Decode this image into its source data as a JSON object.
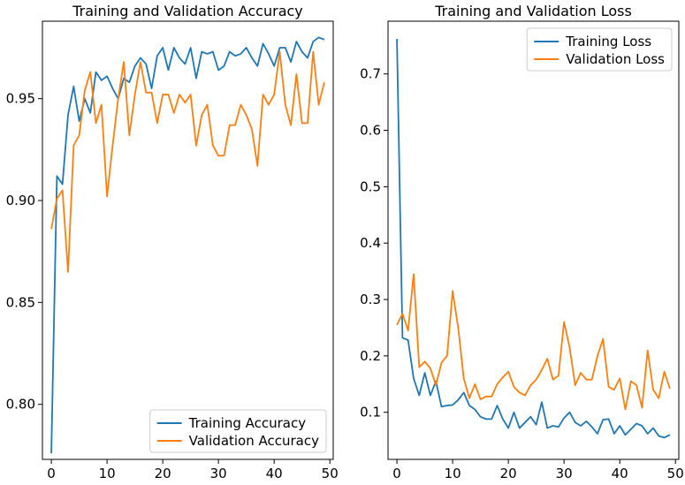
{
  "colors": {
    "training": "#1f77b4",
    "validation": "#ff7f0e"
  },
  "chart_data": [
    {
      "type": "line",
      "title": "Training and Validation Accuracy",
      "xlabel": "",
      "ylabel": "",
      "xlim": [
        -1.6,
        50.6
      ],
      "ylim": [
        0.773,
        0.988
      ],
      "xticks": [
        0,
        10,
        20,
        30,
        40,
        50
      ],
      "yticks": [
        0.8,
        0.85,
        0.9,
        0.95
      ],
      "ytick_labels": [
        "0.80",
        "0.85",
        "0.90",
        "0.95"
      ],
      "legend": "lower-right",
      "grid": false,
      "x": [
        0,
        1,
        2,
        3,
        4,
        5,
        6,
        7,
        8,
        9,
        10,
        11,
        12,
        13,
        14,
        15,
        16,
        17,
        18,
        19,
        20,
        21,
        22,
        23,
        24,
        25,
        26,
        27,
        28,
        29,
        30,
        31,
        32,
        33,
        34,
        35,
        36,
        37,
        38,
        39,
        40,
        41,
        42,
        43,
        44,
        45,
        46,
        47,
        48,
        49
      ],
      "series": [
        {
          "name": "Training Accuracy",
          "color_key": "training",
          "values": [
            0.776,
            0.912,
            0.908,
            0.942,
            0.956,
            0.939,
            0.95,
            0.943,
            0.963,
            0.959,
            0.961,
            0.955,
            0.95,
            0.96,
            0.958,
            0.966,
            0.97,
            0.967,
            0.955,
            0.971,
            0.975,
            0.964,
            0.975,
            0.97,
            0.967,
            0.975,
            0.96,
            0.973,
            0.972,
            0.973,
            0.964,
            0.966,
            0.973,
            0.971,
            0.972,
            0.975,
            0.97,
            0.966,
            0.977,
            0.972,
            0.966,
            0.975,
            0.975,
            0.968,
            0.978,
            0.973,
            0.97,
            0.978,
            0.98,
            0.979
          ]
        },
        {
          "name": "Validation Accuracy",
          "color_key": "validation",
          "values": [
            0.886,
            0.901,
            0.905,
            0.865,
            0.927,
            0.932,
            0.954,
            0.963,
            0.938,
            0.947,
            0.902,
            0.927,
            0.95,
            0.968,
            0.932,
            0.952,
            0.968,
            0.953,
            0.953,
            0.938,
            0.952,
            0.952,
            0.943,
            0.952,
            0.948,
            0.952,
            0.927,
            0.942,
            0.947,
            0.927,
            0.922,
            0.922,
            0.937,
            0.937,
            0.947,
            0.942,
            0.935,
            0.917,
            0.952,
            0.947,
            0.952,
            0.973,
            0.947,
            0.937,
            0.962,
            0.938,
            0.938,
            0.973,
            0.947,
            0.958
          ]
        }
      ]
    },
    {
      "type": "line",
      "title": "Training and Validation Loss",
      "xlabel": "",
      "ylabel": "",
      "xlim": [
        -1.6,
        50.6
      ],
      "ylim": [
        0.0165,
        0.7935
      ],
      "xticks": [
        0,
        10,
        20,
        30,
        40,
        50
      ],
      "yticks": [
        0.1,
        0.2,
        0.3,
        0.4,
        0.5,
        0.6,
        0.7
      ],
      "ytick_labels": [
        "0.1",
        "0.2",
        "0.3",
        "0.4",
        "0.5",
        "0.6",
        "0.7"
      ],
      "legend": "upper-right",
      "grid": false,
      "x": [
        0,
        1,
        2,
        3,
        4,
        5,
        6,
        7,
        8,
        9,
        10,
        11,
        12,
        13,
        14,
        15,
        16,
        17,
        18,
        19,
        20,
        21,
        22,
        23,
        24,
        25,
        26,
        27,
        28,
        29,
        30,
        31,
        32,
        33,
        34,
        35,
        36,
        37,
        38,
        39,
        40,
        41,
        42,
        43,
        44,
        45,
        46,
        47,
        48,
        49
      ],
      "series": [
        {
          "name": "Training Loss",
          "color_key": "training",
          "values": [
            0.762,
            0.232,
            0.228,
            0.16,
            0.13,
            0.17,
            0.13,
            0.155,
            0.11,
            0.112,
            0.113,
            0.122,
            0.135,
            0.112,
            0.105,
            0.092,
            0.088,
            0.088,
            0.112,
            0.088,
            0.072,
            0.1,
            0.072,
            0.082,
            0.092,
            0.078,
            0.118,
            0.072,
            0.076,
            0.074,
            0.09,
            0.1,
            0.082,
            0.076,
            0.084,
            0.074,
            0.062,
            0.087,
            0.088,
            0.062,
            0.076,
            0.06,
            0.07,
            0.08,
            0.076,
            0.062,
            0.072,
            0.058,
            0.055,
            0.06
          ]
        },
        {
          "name": "Validation Loss",
          "color_key": "validation",
          "values": [
            0.255,
            0.275,
            0.245,
            0.345,
            0.18,
            0.19,
            0.178,
            0.148,
            0.188,
            0.2,
            0.315,
            0.25,
            0.16,
            0.125,
            0.15,
            0.123,
            0.128,
            0.128,
            0.15,
            0.162,
            0.172,
            0.145,
            0.135,
            0.13,
            0.148,
            0.158,
            0.175,
            0.195,
            0.158,
            0.165,
            0.26,
            0.215,
            0.148,
            0.17,
            0.158,
            0.158,
            0.2,
            0.23,
            0.145,
            0.14,
            0.16,
            0.105,
            0.155,
            0.148,
            0.108,
            0.21,
            0.14,
            0.125,
            0.172,
            0.142
          ]
        }
      ]
    }
  ]
}
